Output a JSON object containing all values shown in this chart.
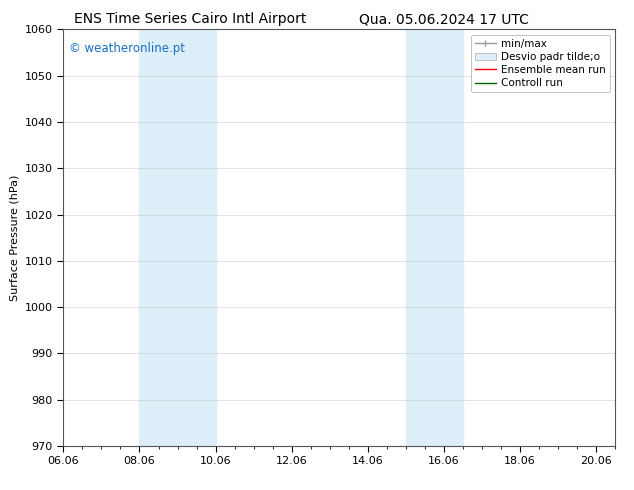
{
  "title_left": "ENS Time Series Cairo Intl Airport",
  "title_right": "Qua. 05.06.2024 17 UTC",
  "ylabel": "Surface Pressure (hPa)",
  "ylim": [
    970,
    1060
  ],
  "yticks": [
    970,
    980,
    990,
    1000,
    1010,
    1020,
    1030,
    1040,
    1050,
    1060
  ],
  "xlim_start": 0.0,
  "xlim_end": 14.5,
  "xtick_labels": [
    "06.06",
    "08.06",
    "10.06",
    "12.06",
    "14.06",
    "16.06",
    "18.06",
    "20.06"
  ],
  "xtick_positions": [
    0,
    2,
    4,
    6,
    8,
    10,
    12,
    14
  ],
  "shaded_regions": [
    {
      "x_start": 2.0,
      "x_end": 3.5,
      "color": "#ddeef8"
    },
    {
      "x_start": 8.75,
      "x_end": 9.5,
      "color": "#ddeef8"
    },
    {
      "x_start": 9.5,
      "x_end": 10.25,
      "color": "#ddeef8"
    }
  ],
  "watermark_text": "© weatheronline.pt",
  "watermark_color": "#1a6fc4",
  "bg_color": "#ffffff",
  "grid_color": "#aaaaaa",
  "tick_font_size": 8,
  "title_font_size": 10,
  "ylabel_font_size": 8,
  "legend_fontsize": 7.5
}
